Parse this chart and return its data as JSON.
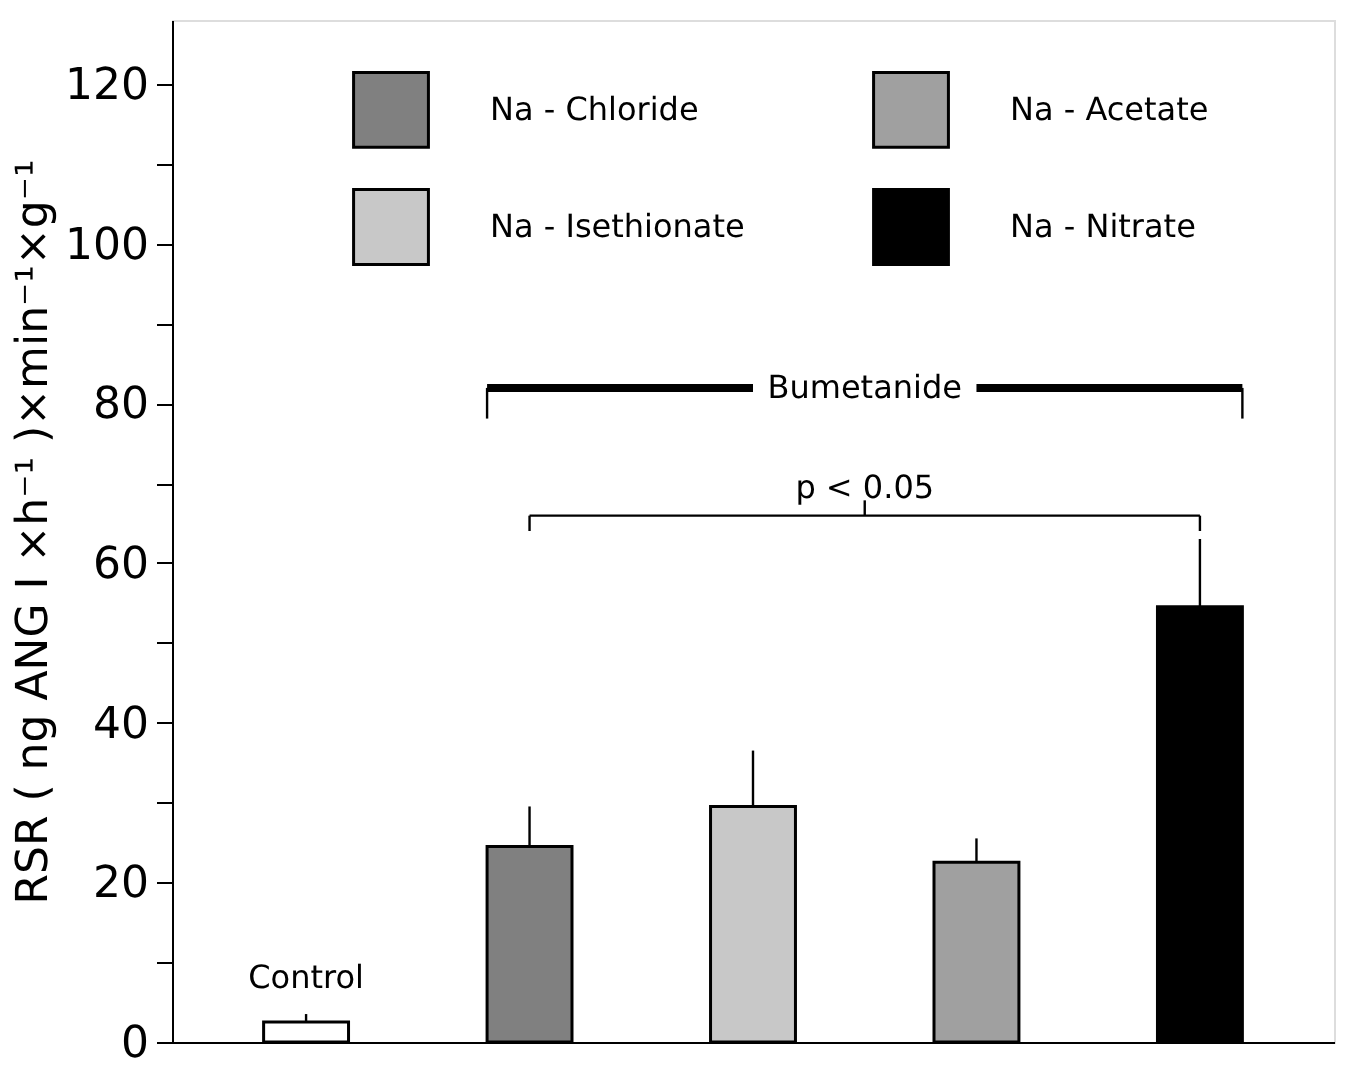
{
  "chart_data": {
    "type": "bar",
    "ylabel": "RSR ( ng ANG I ×h⁻¹ )×min⁻¹×g⁻¹",
    "categories": [
      null,
      null,
      null,
      null,
      null
    ],
    "series": [
      {
        "color": "#ffffff",
        "values": [
          2.5,
          null,
          null,
          null,
          null
        ],
        "errors": [
          [
            2.5,
            3.5
          ],
          null,
          null,
          null,
          null
        ]
      },
      {
        "name": "Na - Chloride",
        "color": "#808080",
        "values": [
          null,
          24.5,
          null,
          null,
          null
        ],
        "errors": [
          null,
          [
            24.5,
            29.5
          ],
          null,
          null,
          null
        ]
      },
      {
        "name": "Na - Isethionate",
        "color": "#c8c8c8",
        "values": [
          null,
          null,
          29.5,
          null,
          null
        ],
        "errors": [
          null,
          null,
          [
            29.5,
            36.5
          ],
          null,
          null
        ]
      },
      {
        "name": "Na - Acetate",
        "color": "#a0a0a0",
        "values": [
          null,
          null,
          null,
          22.5,
          null
        ],
        "errors": [
          null,
          null,
          null,
          [
            22.5,
            25.5
          ],
          null
        ]
      },
      {
        "name": "Na - Nitrate",
        "color": "#000000",
        "values": [
          null,
          null,
          null,
          null,
          54.5
        ],
        "errors": [
          null,
          null,
          null,
          null,
          [
            54.5,
            63
          ]
        ]
      }
    ],
    "ylim": [
      0,
      128
    ],
    "yticks": [
      0,
      {
        "value": 10,
        "label": null
      },
      20,
      {
        "value": 30,
        "label": null
      },
      40,
      {
        "value": 50,
        "label": null
      },
      60,
      {
        "value": 70,
        "label": null
      },
      80,
      {
        "value": 90,
        "label": null
      },
      100,
      {
        "value": 110,
        "label": null
      },
      120
    ],
    "tick_labels": "y",
    "grid": false,
    "legend": "top",
    "annotations": [
      "Control",
      "Bumetanide",
      "p < 0.05"
    ]
  }
}
